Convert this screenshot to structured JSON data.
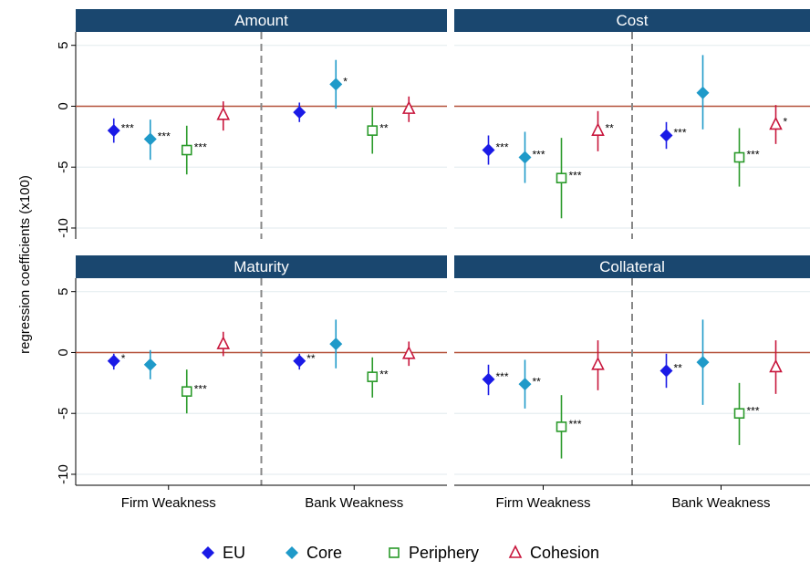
{
  "chart_data": {
    "type": "dotplot",
    "ylabel": "regression coefficients (x100)",
    "ylim": [
      -10.9,
      6.1
    ],
    "yticks": [
      -10,
      -5,
      0,
      5
    ],
    "refline": 0,
    "grid": true,
    "categories": [
      "Firm Weakness",
      "Bank Weakness"
    ],
    "series": [
      {
        "name": "EU",
        "color": "#1a1ae6",
        "marker": "diamond"
      },
      {
        "name": "Core",
        "color": "#1f9ac9",
        "marker": "diamond"
      },
      {
        "name": "Periphery",
        "color": "#2a9a2a",
        "marker": "square"
      },
      {
        "name": "Cohesion",
        "color": "#c8163c",
        "marker": "triangle"
      }
    ],
    "panels": [
      {
        "title": "Amount",
        "series": [
          {
            "values": [
              -2.0,
              -0.5
            ],
            "low": [
              -3.0,
              -1.3
            ],
            "high": [
              -1.0,
              0.3
            ],
            "stars": [
              "***",
              null
            ]
          },
          {
            "values": [
              -2.7,
              1.8
            ],
            "low": [
              -4.4,
              -0.2
            ],
            "high": [
              -1.1,
              3.8
            ],
            "stars": [
              "***",
              "*"
            ]
          },
          {
            "values": [
              -3.6,
              -2.0
            ],
            "low": [
              -5.6,
              -3.9
            ],
            "high": [
              -1.6,
              -0.1
            ],
            "stars": [
              "***",
              "**"
            ]
          },
          {
            "values": [
              -0.7,
              -0.2
            ],
            "low": [
              -2.0,
              -1.3
            ],
            "high": [
              0.4,
              0.8
            ],
            "stars": [
              null,
              null
            ]
          }
        ]
      },
      {
        "title": "Cost",
        "series": [
          {
            "values": [
              -3.6,
              -2.4
            ],
            "low": [
              -4.8,
              -3.5
            ],
            "high": [
              -2.4,
              -1.3
            ],
            "stars": [
              "***",
              "***"
            ]
          },
          {
            "values": [
              -4.2,
              1.1
            ],
            "low": [
              -6.3,
              -1.9
            ],
            "high": [
              -2.1,
              4.2
            ],
            "stars": [
              "***",
              null
            ]
          },
          {
            "values": [
              -5.9,
              -4.2
            ],
            "low": [
              -9.2,
              -6.6
            ],
            "high": [
              -2.6,
              -1.8
            ],
            "stars": [
              "***",
              "***"
            ]
          },
          {
            "values": [
              -2.0,
              -1.5
            ],
            "low": [
              -3.7,
              -3.1
            ],
            "high": [
              -0.4,
              0.1
            ],
            "stars": [
              "**",
              "*"
            ]
          }
        ]
      },
      {
        "title": "Maturity",
        "series": [
          {
            "values": [
              -0.7,
              -0.7
            ],
            "low": [
              -1.4,
              -1.4
            ],
            "high": [
              -0.1,
              -0.1
            ],
            "stars": [
              "*",
              "**"
            ]
          },
          {
            "values": [
              -1.0,
              0.7
            ],
            "low": [
              -2.2,
              -1.3
            ],
            "high": [
              0.2,
              2.7
            ],
            "stars": [
              null,
              null
            ]
          },
          {
            "values": [
              -3.2,
              -2.0
            ],
            "low": [
              -5.0,
              -3.7
            ],
            "high": [
              -1.4,
              -0.4
            ],
            "stars": [
              "***",
              "**"
            ]
          },
          {
            "values": [
              0.7,
              -0.1
            ],
            "low": [
              -0.3,
              -1.1
            ],
            "high": [
              1.7,
              0.9
            ],
            "stars": [
              null,
              null
            ]
          }
        ]
      },
      {
        "title": "Collateral",
        "series": [
          {
            "values": [
              -2.2,
              -1.5
            ],
            "low": [
              -3.5,
              -2.9
            ],
            "high": [
              -1.0,
              -0.1
            ],
            "stars": [
              "***",
              "**"
            ]
          },
          {
            "values": [
              -2.6,
              -0.8
            ],
            "low": [
              -4.6,
              -4.3
            ],
            "high": [
              -0.6,
              2.7
            ],
            "stars": [
              "**",
              null
            ]
          },
          {
            "values": [
              -6.1,
              -5.0
            ],
            "low": [
              -8.7,
              -7.6
            ],
            "high": [
              -3.5,
              -2.5
            ],
            "stars": [
              "***",
              "***"
            ]
          },
          {
            "values": [
              -1.0,
              -1.2
            ],
            "low": [
              -3.1,
              -3.4
            ],
            "high": [
              1.0,
              1.0
            ],
            "stars": [
              null,
              null
            ]
          }
        ]
      }
    ]
  }
}
